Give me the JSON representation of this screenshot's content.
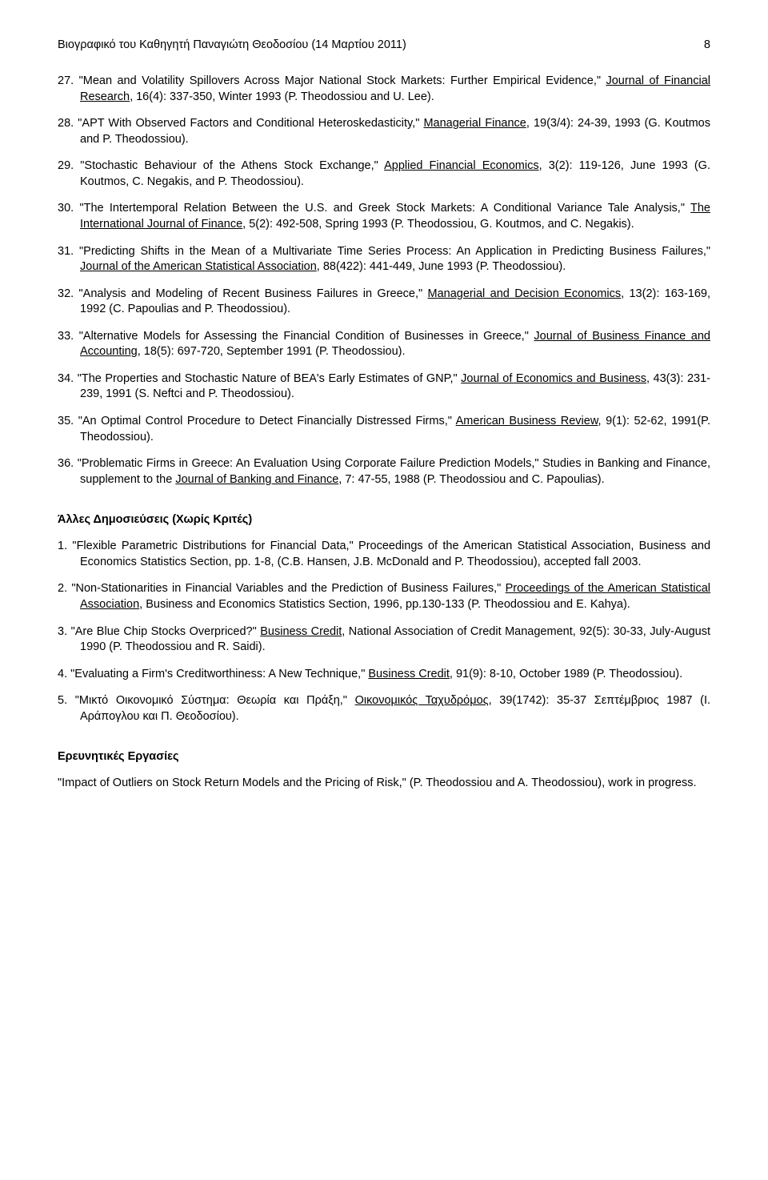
{
  "header": {
    "title": "Βιογραφικό του Καθηγητή Παναγιώτη Θεοδοσίου (14 Μαρτίου 2011)",
    "page_number": "8"
  },
  "entries": [
    {
      "num": "27.",
      "pre": "\"Mean and Volatility Spillovers Across Major National Stock Markets: Further Empirical Evidence,\" ",
      "u": "Journal of Financial Research",
      "post": ", 16(4): 337-350, Winter 1993 (P. Theodossiou and U. Lee)."
    },
    {
      "num": "28.",
      "pre": "\"APT With Observed Factors and Conditional Heteroskedasticity,\" ",
      "u": "Managerial Finance",
      "post": ", 19(3/4): 24-39, 1993 (G. Koutmos and P. Theodossiou)."
    },
    {
      "num": "29.",
      "pre": "\"Stochastic Behaviour of the Athens Stock Exchange,\" ",
      "u": "Applied Financial Economics",
      "post": ", 3(2): 119-126, June 1993 (G. Koutmos, C. Negakis, and P. Theodossiou)."
    },
    {
      "num": "30.",
      "pre": "\"The Intertemporal Relation Between the U.S. and Greek Stock Markets:  A Conditional Variance Tale Analysis,\" ",
      "u": "The International Journal of Finance",
      "post": ", 5(2): 492-508, Spring 1993 (P. Theodossiou, G. Koutmos, and C. Negakis)."
    },
    {
      "num": "31.",
      "pre": "\"Predicting Shifts in the Mean of a Multivariate Time Series Process: An Application in Predicting Business Failures,\" ",
      "u": "Journal of the American Statistical Association",
      "post": ",  88(422): 441-449, June 1993 (P. Theodossiou)."
    },
    {
      "num": "32.",
      "pre": "\"Analysis and Modeling of Recent Business Failures in Greece,\" ",
      "u": "Managerial and Decision Economics",
      "post": ", 13(2): 163-169, 1992 (C. Papoulias and P. Theodossiou)."
    },
    {
      "num": "33.",
      "pre": "\"Alternative Models for Assessing the Financial Condition of Businesses in Greece,\" ",
      "u": "Journal of Business Finance and Accounting",
      "post": ", 18(5): 697-720, September 1991 (P. Theodossiou)."
    },
    {
      "num": "34.",
      "pre": "\"The Properties and Stochastic Nature of BEA's Early Estimates of GNP,\" ",
      "u": "Journal of Economics and Business",
      "post": ", 43(3): 231-239, 1991 (S. Neftci and P. Theodossiou)."
    },
    {
      "num": "35.",
      "pre": "\"An Optimal Control Procedure to Detect Financially Distressed Firms,\" ",
      "u": "American Business Review",
      "post": ", 9(1): 52-62, 1991(P. Theodossiou)."
    },
    {
      "num": "36.",
      "pre": "\"Problematic Firms in Greece: An Evaluation Using Corporate Failure Prediction Models,\" Studies in Banking and Finance, supplement to the ",
      "u": "Journal of Banking and Finance",
      "post": ", 7: 47-55, 1988 (P. Theodossiou and C. Papoulias)."
    }
  ],
  "section_other": "Άλλες Δημοσιεύσεις (Χωρίς Κριτές)",
  "other_pubs": [
    {
      "num": "1.",
      "pre": " \"Flexible Parametric Distributions for Financial Data,\" Proceedings of the American Statistical Association, Business and Economics Statistics Section, pp. 1-8, (C.B. Hansen, J.B. McDonald and P. Theodossiou), accepted fall 2003.",
      "u": "",
      "post": ""
    },
    {
      "num": "2.",
      "pre": "\"Non-Stationarities in Financial Variables and the Prediction of Business Failures,\" ",
      "u": "Proceedings of the American Statistical Association",
      "post": ", Business and Economics Statistics Section, 1996, pp.130-133 (P. Theodossiou and E. Kahya)."
    },
    {
      "num": "3.",
      "pre": " \"Are Blue Chip Stocks Overpriced?\" ",
      "u": "Business Credit",
      "post": ", National Association of Credit Management, 92(5): 30-33, July-August 1990 (P. Theodossiou and R. Saidi)."
    },
    {
      "num": "4.",
      "pre": " \"Evaluating a Firm's Creditworthiness: A New Technique,\" ",
      "u": "Business Credit",
      "post": ", 91(9): 8-10, October 1989 (P. Theodossiou)."
    },
    {
      "num": "5.",
      "pre": " \"Μικτό Οικονομικό Σύστημα: Θεωρία και Πράξη,\" ",
      "u": "Οικονομικός Ταχυδρόμος",
      "post": ", 39(1742): 35-37 Σεπτέμβριος 1987 (Ι. Αράπογλου και Π. Θεοδοσίου)."
    }
  ],
  "section_research": "Ερευνητικές Εργασίες",
  "research_para": "\"Impact of Outliers on Stock Return Models and the Pricing of Risk,\" (P. Theodossiou and A. Theodossiou), work in progress."
}
